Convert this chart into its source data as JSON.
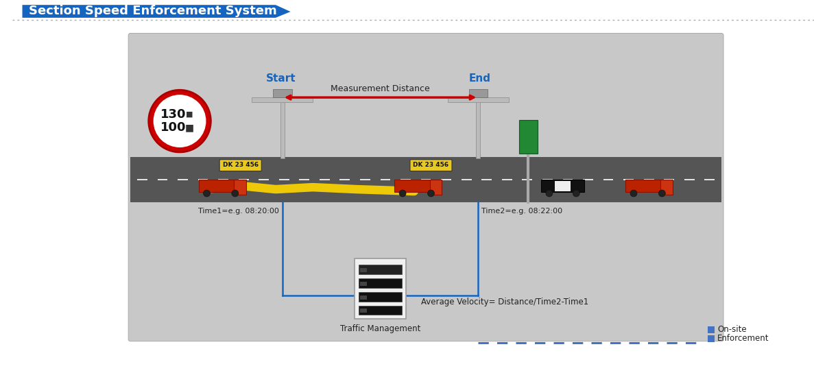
{
  "title": "Section Speed Enforcement System",
  "title_bg_color": "#1565C0",
  "title_text_color": "#FFFFFF",
  "bg_color": "#FFFFFF",
  "diagram_bg_color": "#C8C8C8",
  "road_color": "#555555",
  "start_label": "Start",
  "end_label": "End",
  "measure_label": "Measurement Distance",
  "time1_label": "Time1=e.g. 08:20:00",
  "time2_label": "Time2=e.g. 08:22:00",
  "traffic_label": "Traffic Management",
  "velocity_label": "Average Velocity= Distance/Time2-Time1",
  "onsite_label": "On-site",
  "enforce_label": "Enforcement",
  "speed1": "130",
  "speed2": "100",
  "plate_label": "DK 23 456",
  "measure_line_color": "#CC0000",
  "arrow_color": "#1565C0",
  "dashed_color": "#4472C4",
  "yellow_color": "#FFD700",
  "sign_red": "#CC0000",
  "sign_white": "#FFFFFF",
  "label_color": "#1565C0",
  "green_sign": "#228833"
}
